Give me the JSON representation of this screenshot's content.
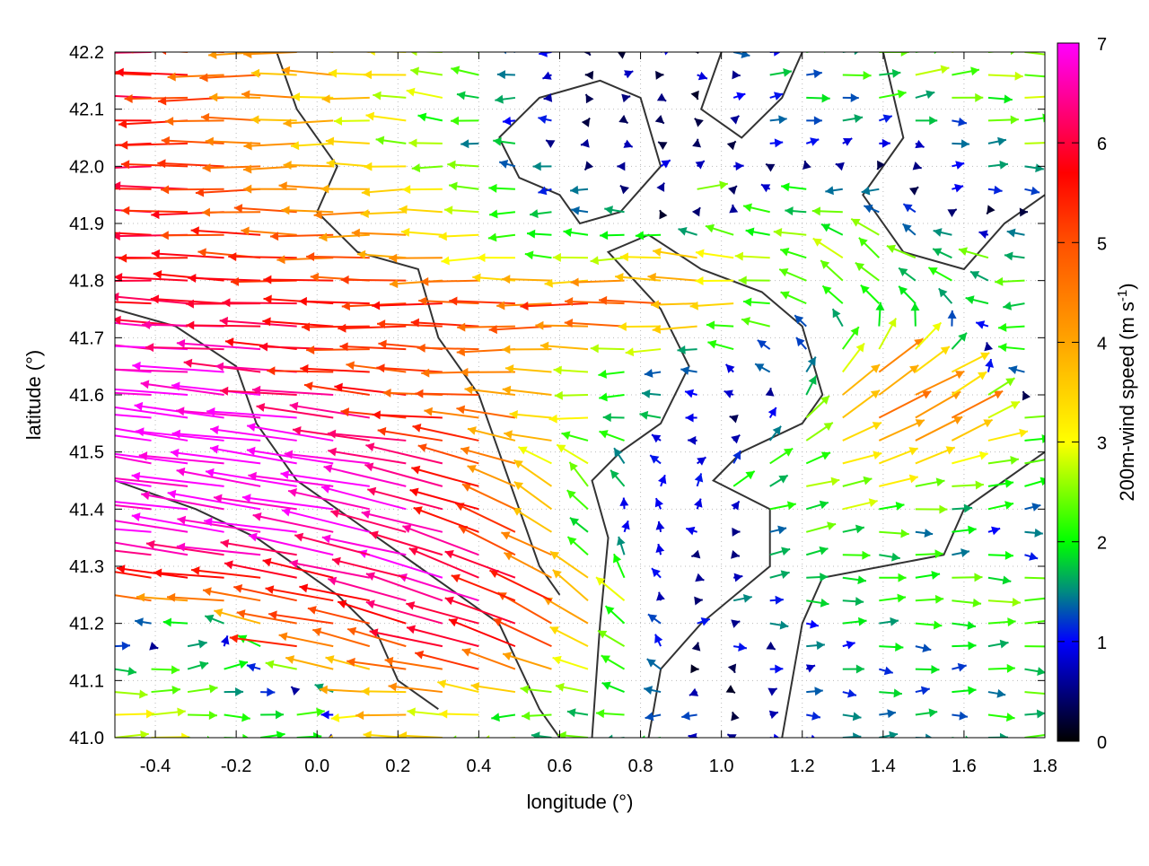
{
  "chart_data": {
    "type": "vector-field",
    "xlabel": "longitude (°)",
    "ylabel": "latitude (°)",
    "xlim": [
      -0.5,
      1.8
    ],
    "ylim": [
      41.0,
      42.2
    ],
    "xticks": [
      "-0.4",
      "-0.2",
      "0.0",
      "0.2",
      "0.4",
      "0.6",
      "0.8",
      "1.0",
      "1.2",
      "1.4",
      "1.6",
      "1.8"
    ],
    "yticks": [
      "41.0",
      "41.1",
      "41.2",
      "41.3",
      "41.4",
      "41.5",
      "41.6",
      "41.7",
      "41.8",
      "41.9",
      "42.0",
      "42.1",
      "42.2"
    ],
    "grid": true,
    "colorbar": {
      "label": "200m-wind speed (m s",
      "label_sup": "-1",
      "label_end": ")",
      "range": [
        0,
        7
      ],
      "ticks": [
        "0",
        "1",
        "2",
        "3",
        "4",
        "5",
        "6",
        "7"
      ],
      "stops": [
        {
          "value": 0,
          "color": "#000000"
        },
        {
          "value": 1,
          "color": "#0000ff"
        },
        {
          "value": 1.5,
          "color": "#008a80"
        },
        {
          "value": 2,
          "color": "#00ff00"
        },
        {
          "value": 3,
          "color": "#ffff00"
        },
        {
          "value": 4,
          "color": "#ffa500"
        },
        {
          "value": 5,
          "color": "#ff5000"
        },
        {
          "value": 5.7,
          "color": "#ff0000"
        },
        {
          "value": 7,
          "color": "#ff00ff"
        }
      ]
    },
    "grid_lon": [
      -0.45,
      -0.25,
      -0.05,
      0.15,
      0.35,
      0.55,
      0.75,
      0.95,
      1.15,
      1.35,
      1.55,
      1.75
    ],
    "grid_lat": [
      42.15,
      42.05,
      41.95,
      41.85,
      41.75,
      41.65,
      41.55,
      41.45,
      41.35,
      41.25,
      41.15,
      41.05
    ],
    "u": [
      [
        -6,
        -5,
        -4,
        -3.5,
        -2.5,
        -1,
        0.5,
        0.5,
        1.5,
        2,
        2.5,
        2.5
      ],
      [
        -6,
        -5,
        -4,
        -3,
        -2,
        -1,
        0.5,
        -0.5,
        1.5,
        1,
        1,
        2.5
      ],
      [
        -6,
        -5.5,
        -4.5,
        -4,
        -3,
        -1.5,
        -1,
        2.5,
        -2,
        -2,
        1,
        1
      ],
      [
        -6,
        -5.5,
        -5,
        -4.5,
        -3.5,
        -2,
        -2.5,
        -3.5,
        -2.5,
        -2,
        -2,
        -2
      ],
      [
        -6,
        -6,
        -6,
        -5.5,
        -5.5,
        -5,
        -5.5,
        -4,
        -2,
        -1.5,
        -1,
        -2
      ],
      [
        -7,
        -7,
        -6,
        -5,
        -5,
        -4,
        -2,
        -1,
        -1,
        3,
        3,
        -2
      ],
      [
        -7,
        -7,
        -7,
        -6,
        -5,
        -4,
        -2,
        -1,
        1,
        4,
        4,
        2.5
      ],
      [
        -7,
        -7,
        -7,
        -7,
        -6,
        -3,
        -1,
        1,
        2,
        3,
        2.5,
        2
      ],
      [
        -7,
        -7,
        -7,
        -6.5,
        -6,
        -4,
        0.5,
        -1,
        2,
        2,
        1.5,
        1
      ],
      [
        -5,
        -5,
        -5,
        -6,
        -6.5,
        -5,
        -2,
        1,
        1.5,
        2,
        2.5,
        2.5
      ],
      [
        1.5,
        2,
        -5,
        -4,
        -6,
        -5,
        -2,
        0.5,
        0.8,
        1.5,
        1.5,
        2
      ],
      [
        3,
        2,
        2,
        -4,
        -3,
        -2,
        -2,
        -1,
        1,
        1.5,
        1.5,
        2
      ]
    ],
    "v": [
      [
        0,
        0,
        0,
        0.3,
        0.3,
        0,
        0,
        0,
        0,
        0.3,
        0.3,
        0
      ],
      [
        0,
        0,
        0,
        0,
        0.3,
        0,
        0,
        0,
        0.5,
        0,
        0,
        0
      ],
      [
        0,
        0,
        0,
        0,
        0,
        0,
        0,
        0.8,
        0,
        0,
        0,
        0
      ],
      [
        0.2,
        0.2,
        0.2,
        0,
        0,
        0,
        0,
        0.3,
        0.5,
        1.5,
        1,
        0
      ],
      [
        0.3,
        0.3,
        0.2,
        0,
        0,
        0,
        0,
        0,
        0,
        2,
        1,
        0
      ],
      [
        0.5,
        0.5,
        0.4,
        0.3,
        0.2,
        0,
        0,
        0,
        1,
        2.5,
        2,
        0
      ],
      [
        0.8,
        0.8,
        0.8,
        0.8,
        0.5,
        0.5,
        0,
        0,
        1,
        2.5,
        2,
        0.5
      ],
      [
        1,
        1,
        1,
        1.2,
        1.5,
        2,
        1.5,
        1,
        1,
        0.5,
        0.5,
        0.3
      ],
      [
        0.8,
        1,
        1.2,
        1.5,
        2,
        2,
        1,
        0,
        0.5,
        0,
        0,
        0
      ],
      [
        0.5,
        0.5,
        0.8,
        1.5,
        2,
        2.5,
        2,
        0,
        0,
        0,
        0,
        0
      ],
      [
        0,
        0.5,
        1,
        1,
        1.5,
        2,
        1.5,
        0,
        0,
        0,
        0,
        0
      ],
      [
        0,
        0,
        0,
        0,
        0,
        0,
        0,
        0,
        0,
        0,
        0,
        0
      ]
    ],
    "contours": [
      [
        [
          0.68,
          41.0
        ],
        [
          0.7,
          41.2
        ],
        [
          0.72,
          41.35
        ],
        [
          0.68,
          41.45
        ],
        [
          0.75,
          41.5
        ],
        [
          0.85,
          41.55
        ],
        [
          0.92,
          41.65
        ],
        [
          0.85,
          41.75
        ],
        [
          0.72,
          41.85
        ],
        [
          0.82,
          41.88
        ],
        [
          0.95,
          41.82
        ],
        [
          1.1,
          41.78
        ],
        [
          1.2,
          41.72
        ],
        [
          1.25,
          41.6
        ],
        [
          1.2,
          41.55
        ],
        [
          1.05,
          41.5
        ],
        [
          0.98,
          41.45
        ],
        [
          1.12,
          41.4
        ],
        [
          1.12,
          41.3
        ],
        [
          0.95,
          41.2
        ],
        [
          0.85,
          41.12
        ],
        [
          0.82,
          41.0
        ]
      ],
      [
        [
          1.15,
          41.0
        ],
        [
          1.2,
          41.2
        ],
        [
          1.25,
          41.28
        ],
        [
          1.4,
          41.3
        ],
        [
          1.55,
          41.32
        ],
        [
          1.6,
          41.4
        ],
        [
          1.7,
          41.45
        ],
        [
          1.8,
          41.5
        ]
      ],
      [
        [
          0.45,
          42.05
        ],
        [
          0.5,
          41.98
        ],
        [
          0.6,
          41.95
        ],
        [
          0.65,
          41.9
        ],
        [
          0.75,
          41.92
        ],
        [
          0.85,
          42.0
        ],
        [
          0.8,
          42.12
        ],
        [
          0.7,
          42.15
        ],
        [
          0.55,
          42.12
        ],
        [
          0.45,
          42.05
        ]
      ],
      [
        [
          -0.5,
          41.75
        ],
        [
          -0.35,
          41.72
        ],
        [
          -0.2,
          41.65
        ],
        [
          -0.15,
          41.55
        ],
        [
          -0.05,
          41.45
        ],
        [
          0.05,
          41.4
        ],
        [
          0.15,
          41.35
        ],
        [
          0.25,
          41.3
        ],
        [
          0.35,
          41.25
        ],
        [
          0.45,
          41.2
        ],
        [
          0.55,
          41.05
        ],
        [
          0.6,
          41.0
        ]
      ],
      [
        [
          -0.5,
          41.45
        ],
        [
          -0.3,
          41.4
        ],
        [
          -0.15,
          41.35
        ],
        [
          -0.05,
          41.3
        ],
        [
          0.05,
          41.25
        ],
        [
          0.15,
          41.18
        ],
        [
          0.2,
          41.1
        ],
        [
          0.3,
          41.05
        ]
      ],
      [
        [
          -0.1,
          42.2
        ],
        [
          -0.05,
          42.1
        ],
        [
          0.05,
          42.0
        ],
        [
          0.0,
          41.92
        ],
        [
          0.1,
          41.85
        ],
        [
          0.25,
          41.82
        ],
        [
          0.3,
          41.7
        ],
        [
          0.4,
          41.6
        ],
        [
          0.45,
          41.5
        ],
        [
          0.5,
          41.4
        ],
        [
          0.55,
          41.3
        ],
        [
          0.6,
          41.25
        ]
      ],
      [
        [
          1.4,
          42.2
        ],
        [
          1.45,
          42.05
        ],
        [
          1.35,
          41.95
        ],
        [
          1.45,
          41.85
        ],
        [
          1.6,
          41.82
        ],
        [
          1.7,
          41.9
        ],
        [
          1.8,
          41.95
        ]
      ],
      [
        [
          1.0,
          42.2
        ],
        [
          0.95,
          42.1
        ],
        [
          1.05,
          42.05
        ],
        [
          1.15,
          42.12
        ],
        [
          1.2,
          42.2
        ]
      ]
    ]
  }
}
